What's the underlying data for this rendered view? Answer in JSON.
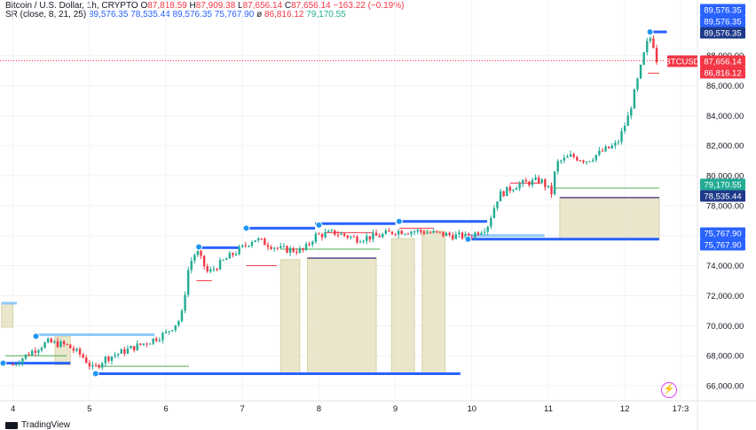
{
  "legend": {
    "symbol": "Bitcoin / U.S. Dollar, 1h, CRYPTO",
    "o_label": "O",
    "o_value": "87,818.59",
    "h_label": "H",
    "h_value": "87,909.38",
    "l_label": "L",
    "l_value": "87,656.14",
    "c_label": "C",
    "c_value": "87,656.14",
    "change": "−163.22 (−0.19%)",
    "indicator": "SR (close, 8, 21, 25)",
    "sr_values": [
      "89,576.35",
      "78,535.44",
      "89,576.35",
      "75,767.90",
      "ø",
      "86,816.12",
      "79,170.55"
    ]
  },
  "footer": {
    "brand": "TradingView"
  },
  "colors": {
    "up": "#22ab94",
    "down": "#f23645",
    "resistance": "#2962ff",
    "support_light": "#90caf9",
    "zone": "#e5e2c3",
    "zone_border": "#d8d3a4",
    "green_line": "#4caf50",
    "purple_line": "#5b4b8a"
  },
  "chart_data": {
    "type": "candlestick",
    "title": "Bitcoin / U.S. Dollar, 1h, CRYPTO",
    "ylim": [
      65000,
      90400
    ],
    "y_ticks": [
      "88,000.00",
      "86,000.00",
      "84,000.00",
      "82,000.00",
      "80,000.00",
      "78,000.00",
      "76,000.00",
      "74,000.00",
      "72,000.00",
      "70,000.00",
      "68,000.00",
      "66,000.00"
    ],
    "y_tick_values": [
      88000,
      86000,
      84000,
      82000,
      80000,
      78000,
      76000,
      74000,
      72000,
      70000,
      68000,
      66000
    ],
    "x_ticks": [
      "4",
      "5",
      "6",
      "7",
      "8",
      "9",
      "10",
      "11",
      "12",
      "17:3"
    ],
    "x_tick_days": [
      4,
      5,
      6,
      7,
      8,
      9,
      10,
      11,
      12,
      12.73
    ],
    "x_range_days": [
      3.83,
      12.95
    ],
    "last_price": 87656.14,
    "price_tags": [
      {
        "label": "89,576.35",
        "value": 89576.35,
        "color": "#2962ff",
        "slot": 0
      },
      {
        "label": "89,576.35",
        "value": 89576.35,
        "color": "#2962ff",
        "slot": 1
      },
      {
        "label": "89,576.35",
        "value": 89576.35,
        "color": "#1e3a8a",
        "slot": 2
      },
      {
        "label": "BTCUSD",
        "value": 87656.14,
        "color": "#f23645",
        "slot": 3,
        "ticker": true
      },
      {
        "label": "87,656.14",
        "value": 87656.14,
        "color": "#f23645",
        "slot": 3
      },
      {
        "label": "86,816.12",
        "value": 86816.12,
        "color": "#f23645",
        "slot": 4
      },
      {
        "label": "79,170.55",
        "value": 79170.55,
        "color": "#22ab94",
        "slot": 5
      },
      {
        "label": "78,535.44",
        "value": 78535.44,
        "color": "#1e3a8a",
        "slot": 6
      },
      {
        "label": "75,767.90",
        "value": 75767.9,
        "color": "#2962ff",
        "slot": 7
      },
      {
        "label": "75,767.90",
        "value": 75767.9,
        "color": "#2962ff",
        "slot": 8
      }
    ],
    "anchors": [
      {
        "day": 4.0,
        "price": 67400
      },
      {
        "day": 4.25,
        "price": 68300
      },
      {
        "day": 4.45,
        "price": 68900
      },
      {
        "day": 4.7,
        "price": 68700
      },
      {
        "day": 4.9,
        "price": 68000
      },
      {
        "day": 5.05,
        "price": 67100
      },
      {
        "day": 5.2,
        "price": 67800
      },
      {
        "day": 5.5,
        "price": 68400
      },
      {
        "day": 5.8,
        "price": 69000
      },
      {
        "day": 6.0,
        "price": 69500
      },
      {
        "day": 6.2,
        "price": 70500
      },
      {
        "day": 6.3,
        "price": 74000
      },
      {
        "day": 6.4,
        "price": 75000
      },
      {
        "day": 6.55,
        "price": 73500
      },
      {
        "day": 6.8,
        "price": 74500
      },
      {
        "day": 7.0,
        "price": 75200
      },
      {
        "day": 7.15,
        "price": 75800
      },
      {
        "day": 7.5,
        "price": 75100
      },
      {
        "day": 7.8,
        "price": 75000
      },
      {
        "day": 7.95,
        "price": 76000
      },
      {
        "day": 8.2,
        "price": 76200
      },
      {
        "day": 8.5,
        "price": 75800
      },
      {
        "day": 8.8,
        "price": 76000
      },
      {
        "day": 9.0,
        "price": 76300
      },
      {
        "day": 9.3,
        "price": 76300
      },
      {
        "day": 9.6,
        "price": 76100
      },
      {
        "day": 9.95,
        "price": 75900
      },
      {
        "day": 10.2,
        "price": 76600
      },
      {
        "day": 10.35,
        "price": 78700
      },
      {
        "day": 10.6,
        "price": 79400
      },
      {
        "day": 10.9,
        "price": 79700
      },
      {
        "day": 11.05,
        "price": 78800
      },
      {
        "day": 11.1,
        "price": 80800
      },
      {
        "day": 11.3,
        "price": 81300
      },
      {
        "day": 11.5,
        "price": 81000
      },
      {
        "day": 11.7,
        "price": 81600
      },
      {
        "day": 11.9,
        "price": 82100
      },
      {
        "day": 12.05,
        "price": 84000
      },
      {
        "day": 12.2,
        "price": 87000
      },
      {
        "day": 12.28,
        "price": 88700
      },
      {
        "day": 12.35,
        "price": 89300
      },
      {
        "day": 12.42,
        "price": 87656
      }
    ],
    "resistance_lines": [
      {
        "from": 3.85,
        "to": 4.05,
        "price": 71500,
        "color": "#90caf9"
      },
      {
        "from": 4.3,
        "to": 5.3,
        "price": 69400,
        "color": "#90caf9"
      },
      {
        "from": 5.2,
        "to": 5.85,
        "price": 69400,
        "color": "#90caf9"
      },
      {
        "from": 6.45,
        "to": 6.95,
        "price": 75200,
        "color": "#2962ff"
      },
      {
        "from": 7.05,
        "to": 7.95,
        "price": 76500,
        "color": "#2962ff"
      },
      {
        "from": 7.95,
        "to": 9.0,
        "price": 76800,
        "color": "#2962ff"
      },
      {
        "from": 9.05,
        "to": 10.2,
        "price": 76950,
        "color": "#2962ff"
      },
      {
        "from": 12.32,
        "to": 12.55,
        "price": 89576,
        "color": "#2962ff"
      }
    ],
    "support_lines": [
      {
        "from": 3.85,
        "to": 4.75,
        "price": 67500,
        "color": "#2962ff"
      },
      {
        "from": 5.08,
        "to": 9.85,
        "price": 66800,
        "color": "#2962ff"
      },
      {
        "from": 9.95,
        "to": 12.45,
        "price": 75768,
        "color": "#2962ff"
      },
      {
        "from": 9.95,
        "to": 10.95,
        "price": 76000,
        "color": "#90caf9"
      }
    ],
    "green_lines": [
      {
        "from": 3.9,
        "to": 4.7,
        "price": 68000
      },
      {
        "from": 5.1,
        "to": 6.3,
        "price": 67300
      },
      {
        "from": 7.5,
        "to": 8.8,
        "price": 75100
      },
      {
        "from": 11.1,
        "to": 12.45,
        "price": 79170
      }
    ],
    "red_lines": [
      {
        "from": 6.4,
        "to": 6.6,
        "price": 73000
      },
      {
        "from": 7.05,
        "to": 7.45,
        "price": 74000
      },
      {
        "from": 8.1,
        "to": 8.7,
        "price": 76200
      },
      {
        "from": 9.05,
        "to": 9.5,
        "price": 76500
      },
      {
        "from": 10.5,
        "to": 10.9,
        "price": 79500
      },
      {
        "from": 12.3,
        "to": 12.45,
        "price": 86816
      }
    ],
    "zones": [
      {
        "from": 3.85,
        "to": 4.0,
        "top": 71500,
        "bottom": 69900
      },
      {
        "from": 4.55,
        "to": 4.75,
        "top": 69300,
        "bottom": 67400
      },
      {
        "from": 7.5,
        "to": 7.75,
        "top": 74400,
        "bottom": 66800
      },
      {
        "from": 7.85,
        "to": 8.75,
        "top": 74500,
        "bottom": 66800
      },
      {
        "from": 8.95,
        "to": 9.25,
        "top": 75800,
        "bottom": 66800
      },
      {
        "from": 9.35,
        "to": 9.65,
        "top": 76300,
        "bottom": 66800
      },
      {
        "from": 11.15,
        "to": 12.45,
        "top": 78535,
        "bottom": 75768
      }
    ],
    "pivot_points": [
      {
        "day": 3.87,
        "price": 67500
      },
      {
        "day": 4.3,
        "price": 69300
      },
      {
        "day": 5.08,
        "price": 66800
      },
      {
        "day": 6.43,
        "price": 75250
      },
      {
        "day": 7.05,
        "price": 76500
      },
      {
        "day": 8.0,
        "price": 76700
      },
      {
        "day": 9.05,
        "price": 76950
      },
      {
        "day": 9.95,
        "price": 75768
      },
      {
        "day": 12.33,
        "price": 89576
      }
    ]
  }
}
